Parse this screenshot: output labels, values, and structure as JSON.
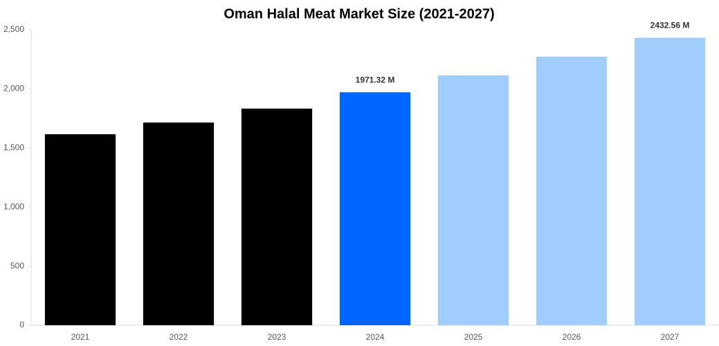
{
  "chart_data": {
    "type": "bar",
    "title": "Oman Halal Meat Market Size (2021-2027)",
    "categories": [
      "2021",
      "2022",
      "2023",
      "2024",
      "2025",
      "2026",
      "2027"
    ],
    "values": [
      1616,
      1715,
      1833,
      1971.32,
      2114,
      2272,
      2432.56
    ],
    "value_labels": [
      null,
      null,
      null,
      "1971.32 M",
      null,
      null,
      "2432.56 M"
    ],
    "colors": [
      "#000000",
      "#000000",
      "#000000",
      "#0066ff",
      "#a0cdfc",
      "#a0cdfc",
      "#a0cdfc"
    ],
    "ylim": [
      0,
      2500
    ],
    "yticks": [
      0,
      500,
      {
        "value": 1000,
        "label": "1,000"
      },
      {
        "value": 1500,
        "label": "1,500"
      },
      {
        "value": 2000,
        "label": "2,000"
      },
      {
        "value": 2500,
        "label": "2,500"
      }
    ],
    "grid": false
  }
}
